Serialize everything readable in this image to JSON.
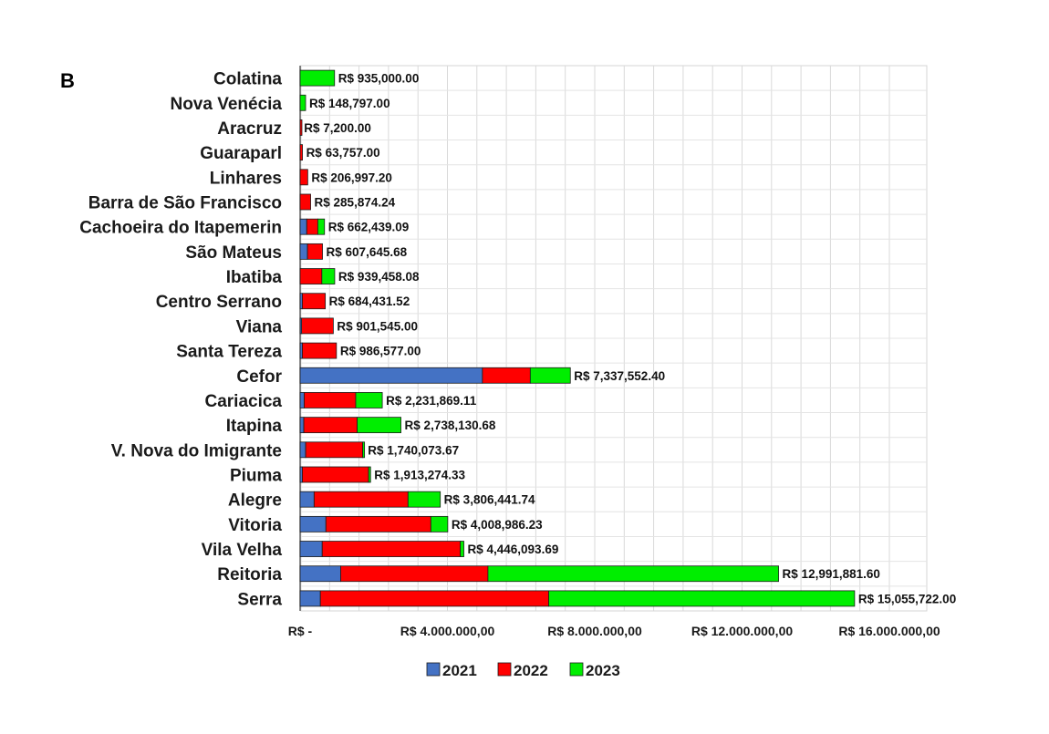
{
  "panel_letter": "B",
  "chart_data": {
    "type": "bar",
    "orientation": "horizontal",
    "stacked": true,
    "categories": [
      "Colatina",
      "Nova Venécia",
      "Aracruz",
      "Guaraparl",
      "Linhares",
      "Barra de São Francisco",
      "Cachoeira do Itapemerin",
      "São Mateus",
      "Ibatiba",
      "Centro Serrano",
      "Viana",
      "Santa Tereza",
      "Cefor",
      "Cariacica",
      "Itapina",
      "V. Nova do Imigrante",
      "Piuma",
      "Alegre",
      "Vitoria",
      "Vila Velha",
      "Reitoria",
      "Serra"
    ],
    "series": [
      {
        "name": "2021",
        "color": "#4472c4",
        "values": [
          0,
          0,
          0,
          0,
          0,
          0,
          180000,
          200000,
          0,
          60000,
          40000,
          60000,
          4950000,
          110000,
          100000,
          150000,
          60000,
          380000,
          700000,
          600000,
          1100000,
          550000
        ]
      },
      {
        "name": "2022",
        "color": "#ff0000",
        "values": [
          0,
          0,
          7200,
          63757,
          206997.2,
          285874.24,
          300000,
          407645.68,
          590000,
          624431.52,
          861545,
          926577,
          1300000,
          1400000,
          1450000,
          1550000,
          1800000,
          2550000,
          2850000,
          3750000,
          4000000,
          6200000
        ]
      },
      {
        "name": "2023",
        "color": "#00ee00",
        "values": [
          935000,
          148797,
          0,
          0,
          0,
          0,
          182439.09,
          0,
          349458.08,
          0,
          0,
          0,
          1087552.4,
          721869.11,
          1188130.68,
          40073.67,
          53274.33,
          876441.74,
          458986.23,
          96093.69,
          7891881.6,
          8305722.0
        ]
      }
    ],
    "totals": [
      935000,
      148797,
      7200,
      63757,
      206997.2,
      285874.24,
      662439.09,
      607645.68,
      939458.08,
      684431.52,
      901545,
      986577,
      7337552.4,
      2231869.11,
      2738130.68,
      1740073.67,
      1913274.33,
      3806441.74,
      4008986.23,
      4446093.69,
      12991881.6,
      15055722.0
    ],
    "total_labels": [
      "R$ 935,000.00",
      "R$ 148,797.00",
      "R$ 7,200.00",
      "R$ 63,757.00",
      "R$ 206,997.20",
      "R$ 285,874.24",
      "R$ 662,439.09",
      "R$ 607,645.68",
      "R$ 939,458.08",
      "R$ 684,431.52",
      "R$ 901,545.00",
      "R$ 986,577.00",
      "R$ 7,337,552.40",
      "R$ 2,231,869.11",
      "R$ 2,738,130.68",
      "R$ 1,740,073.67",
      "R$ 1,913,274.33",
      "R$ 3,806,441.74",
      "R$ 4,008,986.23",
      "R$ 4,446,093.69",
      "R$ 12,991,881.60",
      "R$ 15,055,722.00"
    ],
    "xlim": [
      0,
      16000000
    ],
    "x_ticks": [
      0,
      4000000,
      8000000,
      12000000,
      16000000
    ],
    "x_tick_labels": [
      "R$ -",
      "R$ 4.000.000,00",
      "R$ 8.000.000,00",
      "R$ 12.000.000,00",
      "R$ 16.000.000,00"
    ],
    "grid": true,
    "legend_position": "bottom"
  }
}
